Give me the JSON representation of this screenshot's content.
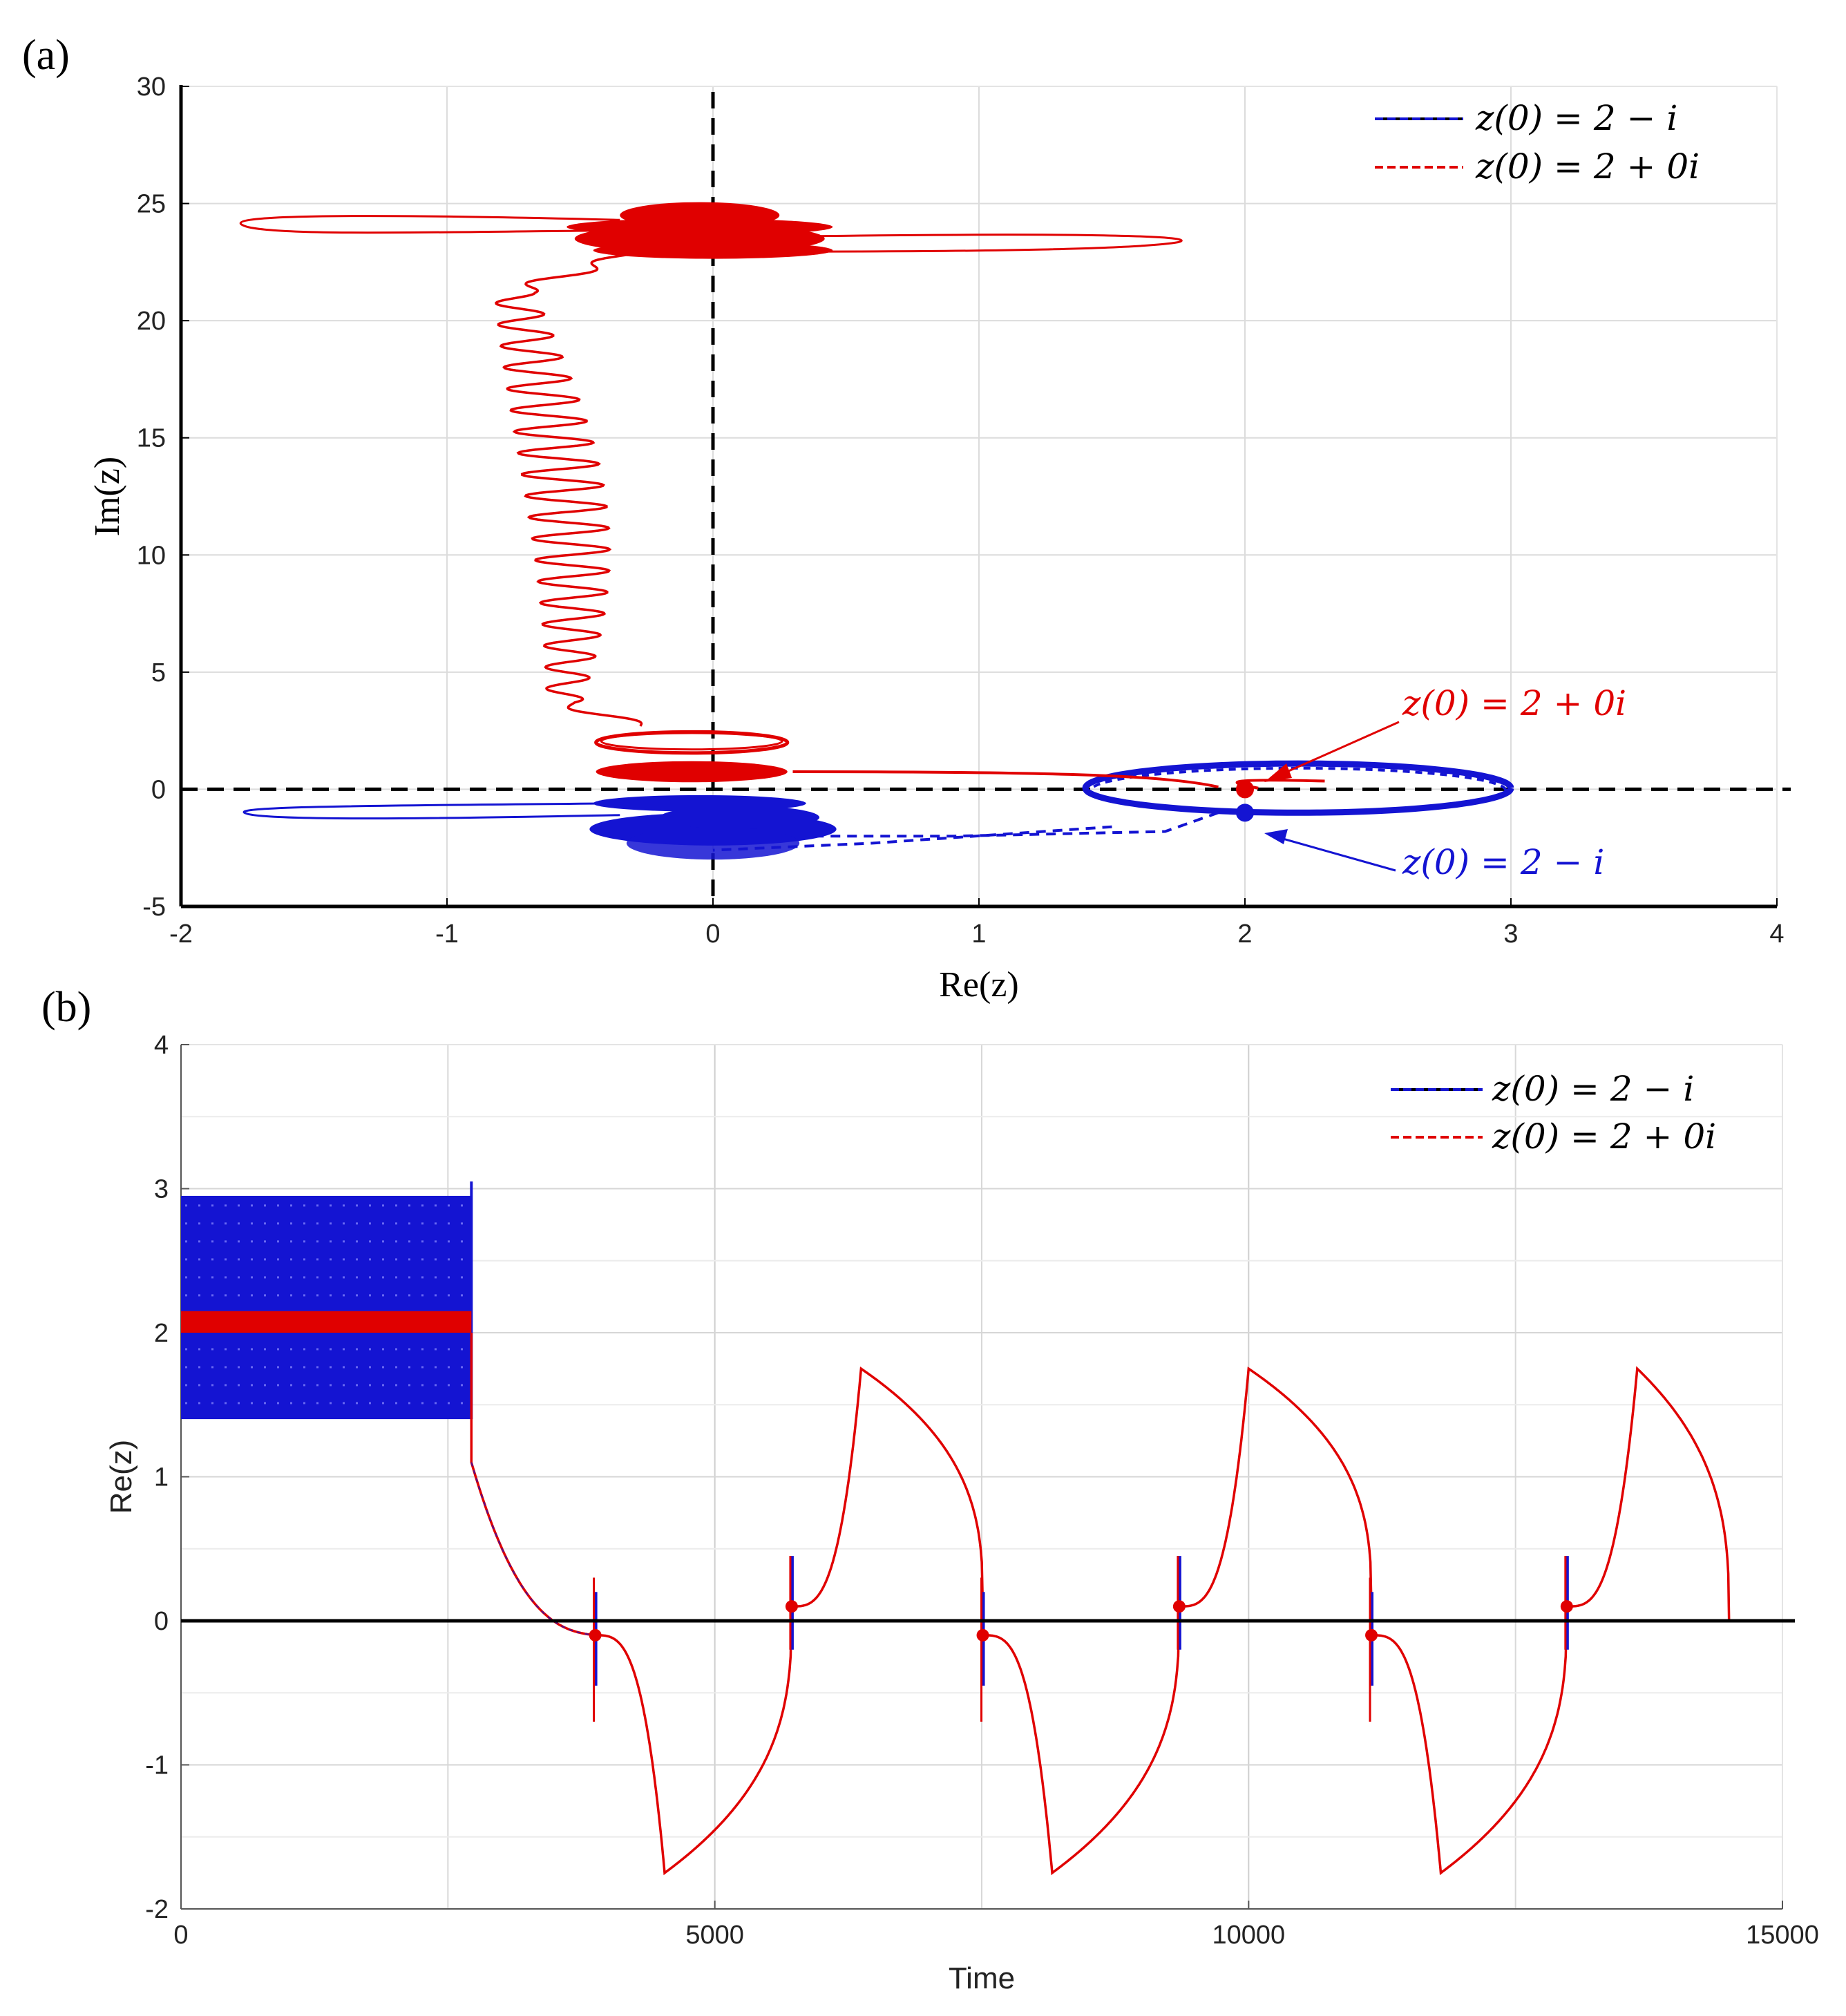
{
  "chart_data": [
    {
      "type": "line",
      "panel_label": "(a)",
      "xlabel": "Re(z)",
      "ylabel": "Im(z)",
      "xlim": [
        -2,
        4
      ],
      "ylim": [
        -5,
        30
      ],
      "xticks": [
        "-2",
        "-1",
        "0",
        "1",
        "2",
        "3",
        "4"
      ],
      "yticks": [
        "-5",
        "0",
        "5",
        "10",
        "15",
        "20",
        "25",
        "30"
      ],
      "grid": true,
      "legend_position": "top-right",
      "legend": [
        "z(0) = 2 − i",
        "z(0) = 2 + 0i"
      ],
      "reference_lines": [
        {
          "orientation": "horizontal",
          "value": 0
        },
        {
          "orientation": "vertical",
          "value": 0
        }
      ],
      "series": [
        {
          "name": "z(0) = 2 − i",
          "color": "#1414d2",
          "start_point": [
            2,
            -1
          ],
          "key_points": [
            [
              2,
              -1
            ],
            [
              3.0,
              0
            ],
            [
              1.4,
              0
            ],
            [
              2.0,
              1.2
            ],
            [
              0.9,
              -2.0
            ],
            [
              -0.4,
              -2.0
            ],
            [
              -0.2,
              -1.0
            ],
            [
              -1.75,
              -1.0
            ],
            [
              0.45,
              -1.3
            ],
            [
              0,
              -1.5
            ]
          ]
        },
        {
          "name": "z(0) = 2 + 0i",
          "color": "#e00000",
          "start_point": [
            2,
            0
          ],
          "key_points": [
            [
              2,
              0
            ],
            [
              1.5,
              0.8
            ],
            [
              0.3,
              0.8
            ],
            [
              -0.45,
              0.8
            ],
            [
              0.3,
              2.0
            ],
            [
              -0.45,
              2.0
            ],
            [
              -0.45,
              2.8
            ],
            [
              -0.55,
              9.0
            ],
            [
              -0.7,
              15.0
            ],
            [
              -0.6,
              21.0
            ],
            [
              -0.4,
              23.0
            ],
            [
              1.75,
              23.3
            ],
            [
              -0.4,
              24.5
            ],
            [
              -1.75,
              24.0
            ],
            [
              0.45,
              23.8
            ],
            [
              0,
              24.0
            ]
          ]
        }
      ],
      "annotations": [
        {
          "text": "z(0) = 2 + 0i",
          "color": "#e00000",
          "points_to": [
            2,
            0
          ]
        },
        {
          "text": "z(0) = 2 − i",
          "color": "#1414d2",
          "points_to": [
            2,
            -1
          ]
        }
      ]
    },
    {
      "type": "line",
      "panel_label": "(b)",
      "xlabel": "Time",
      "ylabel": "Re(z)",
      "xlim": [
        0,
        15000
      ],
      "ylim": [
        -2,
        4
      ],
      "xticks": [
        "0",
        "5000",
        "10000",
        "15000"
      ],
      "yticks": [
        "-2",
        "-1",
        "0",
        "1",
        "2",
        "3",
        "4"
      ],
      "grid": true,
      "legend_position": "top-right",
      "legend": [
        "z(0) = 2 − i",
        "z(0) = 2 + 0i"
      ],
      "reference_lines": [
        {
          "orientation": "horizontal",
          "value": 0
        }
      ],
      "series": [
        {
          "name": "z(0) = 2 − i",
          "color": "#1414d2",
          "oscillation_band": {
            "x_range": [
              0,
              2720
            ],
            "y_range": [
              1.4,
              2.95
            ]
          },
          "spikes": [
            {
              "x": 3880,
              "y_range": [
                -0.45,
                0.2
              ]
            },
            {
              "x": 5720,
              "y_range": [
                -0.2,
                0.45
              ]
            },
            {
              "x": 7510,
              "y_range": [
                -0.45,
                0.2
              ]
            },
            {
              "x": 9350,
              "y_range": [
                -0.2,
                0.45
              ]
            },
            {
              "x": 11150,
              "y_range": [
                -0.45,
                0.2
              ]
            },
            {
              "x": 12980,
              "y_range": [
                -0.2,
                0.45
              ]
            }
          ]
        },
        {
          "name": "z(0) = 2 + 0i",
          "color": "#e00000",
          "oscillation_band": {
            "x_range": [
              0,
              2720
            ],
            "y_range": [
              2.0,
              2.15
            ]
          },
          "trajectory_points": [
            [
              2720,
              2.0
            ],
            [
              2720,
              1.1
            ],
            [
              3880,
              -0.1
            ],
            [
              4530,
              -1.75
            ],
            [
              5720,
              0.1
            ],
            [
              6370,
              1.75
            ],
            [
              7510,
              -0.1
            ],
            [
              8160,
              -1.75
            ],
            [
              9350,
              0.1
            ],
            [
              10000,
              1.75
            ],
            [
              11150,
              -0.1
            ],
            [
              11800,
              -1.75
            ],
            [
              12980,
              0.1
            ],
            [
              13640,
              1.75
            ],
            [
              14500,
              0.0
            ]
          ],
          "peaks": [
            {
              "x": 6370,
              "y": 1.75
            },
            {
              "x": 10000,
              "y": 1.75
            },
            {
              "x": 13640,
              "y": 1.75
            }
          ],
          "troughs": [
            {
              "x": 4530,
              "y": -1.75
            },
            {
              "x": 8160,
              "y": -1.75
            },
            {
              "x": 11800,
              "y": -1.75
            }
          ],
          "end_point": [
            14500,
            0
          ]
        }
      ]
    }
  ]
}
